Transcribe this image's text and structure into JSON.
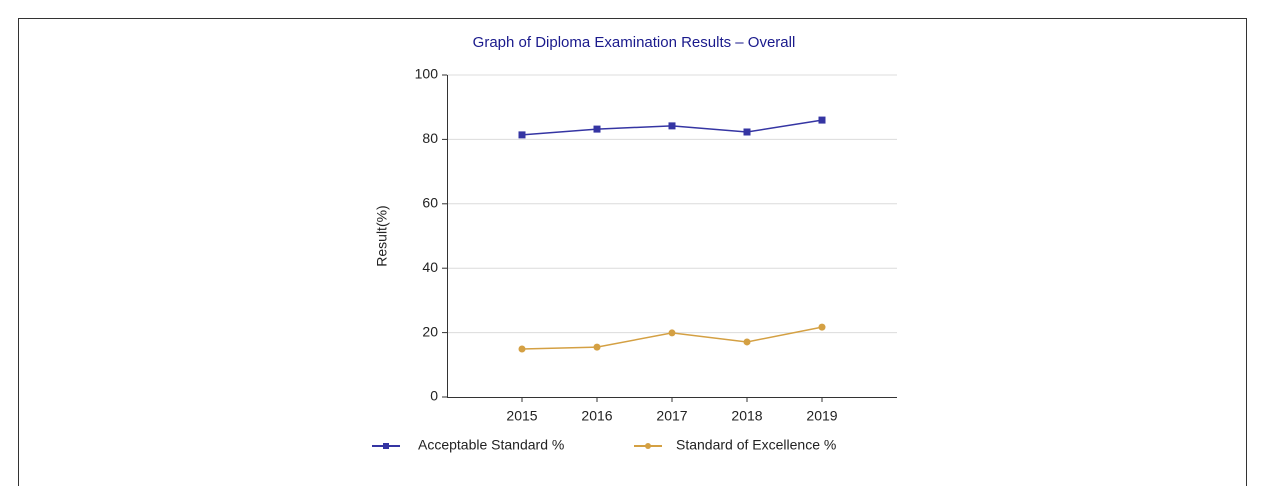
{
  "chart_data": {
    "type": "line",
    "title": "Graph of Diploma Examination Results – Overall",
    "y_label": "Result(%)",
    "x": [
      2015,
      2016,
      2017,
      2018,
      2019
    ],
    "xlim": [
      2014,
      2020
    ],
    "xticks": [
      2015,
      2016,
      2017,
      2018,
      2019
    ],
    "ylim": [
      0,
      100
    ],
    "yticks": [
      0,
      20,
      40,
      60,
      80,
      100
    ],
    "grid": true,
    "series": [
      {
        "name": "Acceptable Standard %",
        "color": "#3535a3",
        "marker": "square",
        "values": [
          81.4,
          83.2,
          84.2,
          82.3,
          86.0
        ]
      },
      {
        "name": "Standard of Excellence %",
        "color": "#d4a043",
        "marker": "circle",
        "values": [
          14.9,
          15.5,
          19.9,
          17.1,
          21.7
        ]
      }
    ]
  }
}
